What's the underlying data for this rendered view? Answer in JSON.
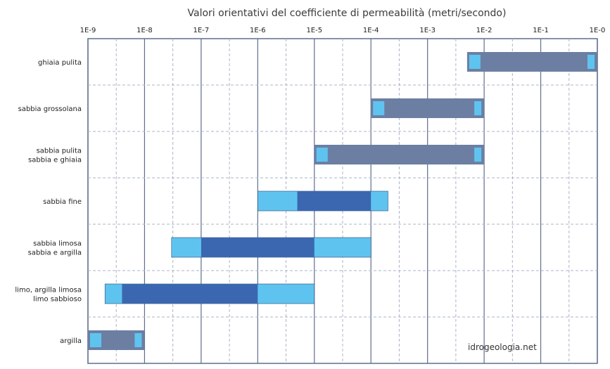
{
  "chart_data": {
    "type": "bar",
    "orientation": "horizontal",
    "title": "Valori orientativi del coefficiente di permeabilità (metri/secondo)",
    "x_scale": "log",
    "xlim": [
      1e-09,
      1
    ],
    "x_ticks": [
      "1E-9",
      "1E-8",
      "1E-7",
      "1E-6",
      "1E-5",
      "1E-4",
      "1E-3",
      "1E-2",
      "1E-1",
      "1E-0"
    ],
    "grid": true,
    "watermark": "idrogeologia.net",
    "colors": {
      "range": "#6c7fa3",
      "secondary": "#5ec4ef",
      "core": "#3b67b0"
    },
    "categories": [
      {
        "label": [
          "ghiaia pulita"
        ],
        "outer": [
          0.005,
          1
        ],
        "core": null
      },
      {
        "label": [
          "sabbia grossolana"
        ],
        "outer": [
          0.0001,
          0.01
        ],
        "core": null
      },
      {
        "label": [
          "sabbia pulita",
          "sabbia e ghiaia"
        ],
        "outer": [
          1e-05,
          0.01
        ],
        "core": null
      },
      {
        "label": [
          "sabbia fine"
        ],
        "outer": [
          1e-06,
          0.0002
        ],
        "core": [
          5e-06,
          0.0001
        ]
      },
      {
        "label": [
          "sabbia limosa",
          "sabbia e argilla"
        ],
        "outer": [
          3e-08,
          0.0001
        ],
        "core": [
          1e-07,
          1e-05
        ]
      },
      {
        "label": [
          "limo, argilla limosa",
          "limo sabbioso"
        ],
        "outer": [
          2e-09,
          1e-05
        ],
        "core": [
          4e-09,
          1e-06
        ]
      },
      {
        "label": [
          "argilla"
        ],
        "outer": [
          1e-09,
          1e-08
        ],
        "core": null
      }
    ]
  }
}
